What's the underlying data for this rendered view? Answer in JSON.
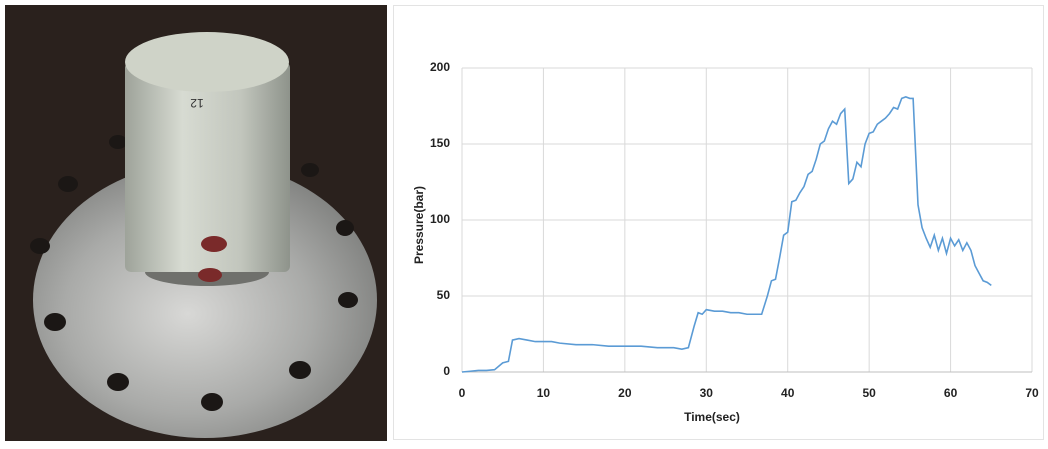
{
  "photo_label": "12",
  "chart_data": {
    "type": "line",
    "x_label": "Time(sec)",
    "y_label": "Pressure(bar)",
    "xlim": [
      0,
      70
    ],
    "xticks": [
      0,
      10,
      20,
      30,
      40,
      50,
      60,
      70
    ],
    "ylim": [
      0,
      200
    ],
    "yticks": [
      0,
      50,
      100,
      150,
      200
    ],
    "grid": true,
    "series": [
      {
        "color": "#5b9bd5",
        "x": [
          0,
          1,
          2,
          3,
          4,
          5,
          5.7,
          6.2,
          7,
          8,
          9,
          10,
          11,
          12,
          14,
          16,
          18,
          20,
          22,
          24,
          26,
          27,
          27.8,
          28.5,
          29,
          29.5,
          30,
          31,
          32,
          33,
          34,
          35,
          36,
          36.8,
          37.5,
          38,
          38.5,
          39,
          39.5,
          40,
          40.5,
          41,
          41.5,
          42,
          42.5,
          43,
          43.5,
          44,
          44.5,
          45,
          45.5,
          46,
          46.5,
          47,
          47.5,
          48,
          48.5,
          49,
          49.5,
          50,
          50.5,
          51,
          51.5,
          52,
          52.5,
          53,
          53.5,
          54,
          54.5,
          55,
          55.4,
          56,
          56.5,
          57,
          57.5,
          58,
          58.5,
          59,
          59.5,
          60,
          60.5,
          61,
          61.5,
          62,
          62.5,
          63,
          63.5,
          64,
          64.5,
          65
        ],
        "values": [
          0,
          0.5,
          1,
          1,
          1.5,
          6,
          7,
          21,
          22,
          21,
          20,
          20,
          20,
          19,
          18,
          18,
          17,
          17,
          17,
          16,
          16,
          15,
          16,
          30,
          39,
          38,
          41,
          40,
          40,
          39,
          39,
          38,
          38,
          38,
          50,
          60,
          61,
          75,
          90,
          92,
          112,
          113,
          118,
          122,
          130,
          132,
          140,
          150,
          152,
          160,
          165,
          163,
          170,
          173,
          124,
          127,
          138,
          135,
          150,
          157,
          158,
          163,
          165,
          167,
          170,
          174,
          173,
          180,
          181,
          180,
          180,
          110,
          95,
          88,
          82,
          90,
          80,
          88,
          78,
          88,
          83,
          87,
          80,
          85,
          80,
          70,
          65,
          60,
          59,
          57
        ]
      }
    ]
  }
}
